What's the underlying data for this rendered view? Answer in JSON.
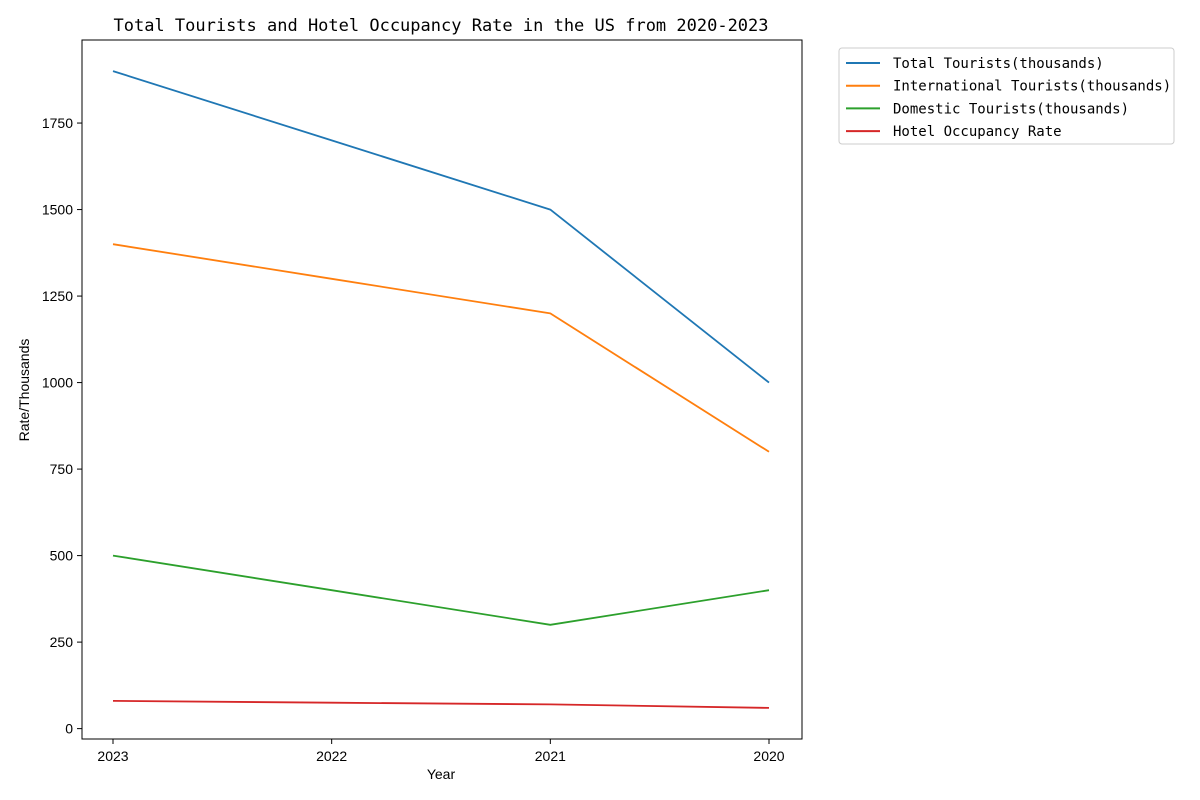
{
  "chart_data": {
    "type": "line",
    "title": "Total Tourists and Hotel Occupancy Rate in the US from 2020-2023",
    "xlabel": "Year",
    "ylabel": "Rate/Thousands",
    "categories": [
      "2023",
      "2022",
      "2021",
      "2020"
    ],
    "ylim": [
      -30,
      1990
    ],
    "yticks": [
      0,
      250,
      500,
      750,
      1000,
      1250,
      1500,
      1750
    ],
    "grid": false,
    "legend_position": "outside-top-right",
    "series": [
      {
        "name": "Total Tourists(thousands)",
        "color": "#1f77b4",
        "values": [
          1900,
          1700,
          1500,
          1000
        ]
      },
      {
        "name": "International Tourists(thousands)",
        "color": "#ff7f0e",
        "values": [
          1400,
          1300,
          1200,
          800
        ]
      },
      {
        "name": "Domestic Tourists(thousands)",
        "color": "#2ca02c",
        "values": [
          500,
          400,
          300,
          400
        ]
      },
      {
        "name": "Hotel Occupancy Rate",
        "color": "#d62728",
        "values": [
          80,
          75,
          70,
          60
        ]
      }
    ]
  }
}
